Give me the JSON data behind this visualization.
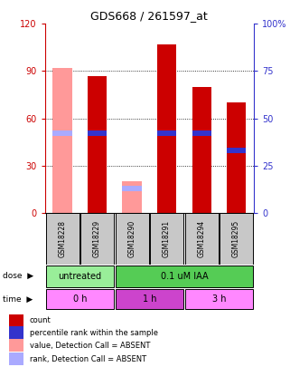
{
  "title": "GDS668 / 261597_at",
  "samples": [
    "GSM18228",
    "GSM18229",
    "GSM18290",
    "GSM18291",
    "GSM18294",
    "GSM18295"
  ],
  "bar_values": [
    92,
    87,
    20,
    107,
    80,
    70
  ],
  "bar_colors": [
    "#FF9999",
    "#CC0000",
    "#FF9999",
    "#CC0000",
    "#CC0000",
    "#CC0000"
  ],
  "rank_values": [
    42,
    42,
    13,
    42,
    42,
    33
  ],
  "rank_colors": [
    "#AAAAFF",
    "#3333CC",
    "#AAAAFF",
    "#3333CC",
    "#3333CC",
    "#3333CC"
  ],
  "absent_flags": [
    true,
    false,
    true,
    false,
    false,
    false
  ],
  "ylim_left": [
    0,
    120
  ],
  "ylim_right": [
    0,
    100
  ],
  "yticks_left": [
    0,
    30,
    60,
    90,
    120
  ],
  "ytick_labels_left": [
    "0",
    "30",
    "60",
    "90",
    "120"
  ],
  "yticks_right": [
    0,
    25,
    50,
    75,
    100
  ],
  "ytick_labels_right": [
    "0",
    "25",
    "50",
    "75",
    "100%"
  ],
  "dose_labels": [
    {
      "text": "untreated",
      "span": [
        0,
        2
      ],
      "color": "#99EE99"
    },
    {
      "text": "0.1 uM IAA",
      "span": [
        2,
        6
      ],
      "color": "#55CC55"
    }
  ],
  "time_labels": [
    {
      "text": "0 h",
      "span": [
        0,
        2
      ],
      "color": "#FF88FF"
    },
    {
      "text": "1 h",
      "span": [
        2,
        4
      ],
      "color": "#CC44CC"
    },
    {
      "text": "3 h",
      "span": [
        4,
        6
      ],
      "color": "#FF88FF"
    }
  ],
  "legend_items": [
    {
      "color": "#CC0000",
      "label": "count"
    },
    {
      "color": "#3333CC",
      "label": "percentile rank within the sample"
    },
    {
      "color": "#FF9999",
      "label": "value, Detection Call = ABSENT"
    },
    {
      "color": "#AAAAFF",
      "label": "rank, Detection Call = ABSENT"
    }
  ],
  "left_axis_color": "#CC0000",
  "right_axis_color": "#3333CC",
  "bar_width": 0.55,
  "rank_bar_height": 3.5,
  "grid_lines": [
    30,
    60,
    90
  ],
  "sample_box_color": "#C8C8C8",
  "fig_bg": "#FFFFFF"
}
